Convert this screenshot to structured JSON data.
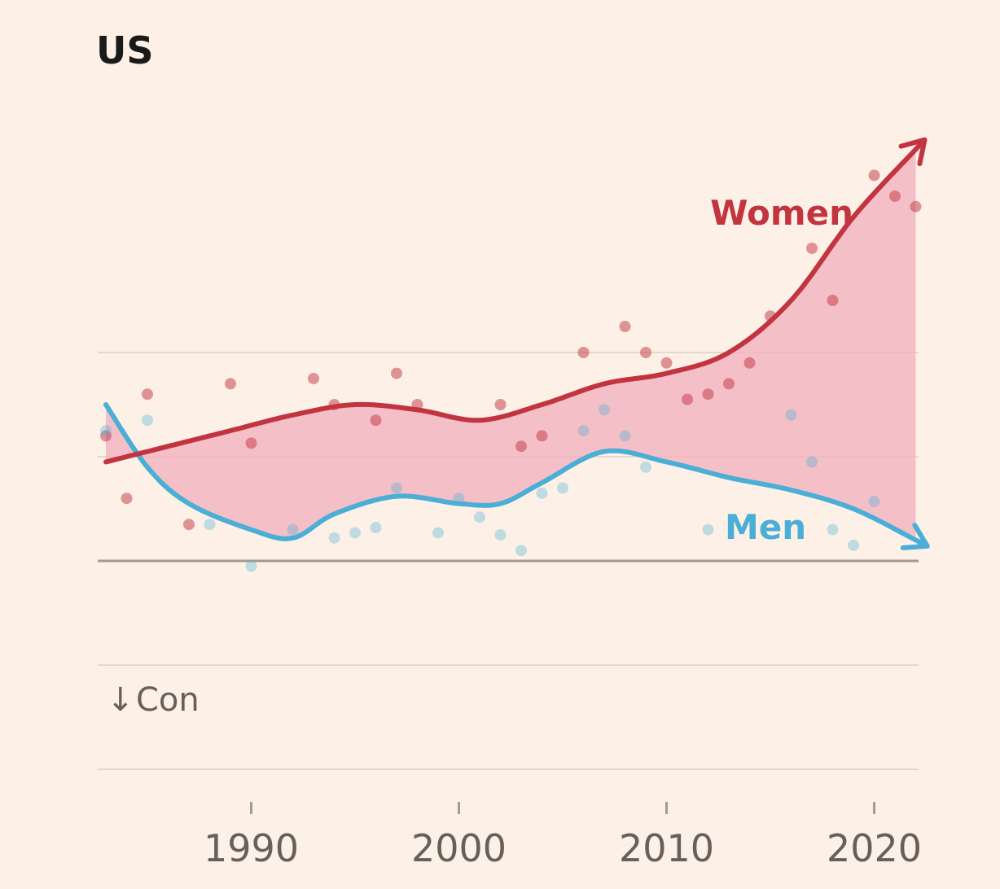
{
  "chart_data": {
    "type": "line",
    "title": "US",
    "xlabel": "",
    "ylabel": "",
    "xlim": [
      1983,
      2022
    ],
    "ylim": [
      -2,
      2
    ],
    "x_ticks": [
      1990,
      2000,
      2010,
      2020
    ],
    "y_gridlines": [
      -2,
      -1,
      0,
      1,
      2
    ],
    "baseline": 0,
    "grid": true,
    "annotations": {
      "bottom_arrow": "↓",
      "bottom_text": "Con"
    },
    "colors": {
      "background": "#fdf1e7",
      "women": "#c2343f",
      "men": "#4aaed6",
      "fill_between": "#f3b3c1",
      "grid": "#e3d8cf",
      "baseline": "#a89890"
    },
    "series": [
      {
        "name": "Women",
        "smooth_x": [
          1983,
          1986,
          1989,
          1992,
          1995,
          1998,
          2001,
          2004,
          2007,
          2010,
          2013,
          2016,
          2019,
          2022
        ],
        "smooth_y": [
          0.95,
          1.1,
          1.25,
          1.4,
          1.5,
          1.45,
          1.35,
          1.5,
          1.7,
          1.8,
          2.0,
          2.5,
          3.3,
          3.95
        ],
        "points_x": [
          1983,
          1984,
          1985,
          1987,
          1989,
          1990,
          1993,
          1994,
          1996,
          1997,
          1998,
          2002,
          2003,
          2004,
          2006,
          2008,
          2009,
          2010,
          2011,
          2012,
          2013,
          2014,
          2015,
          2017,
          2018,
          2020,
          2021,
          2022
        ],
        "points_y": [
          1.2,
          0.6,
          1.6,
          0.35,
          1.7,
          1.13,
          1.75,
          1.5,
          1.35,
          1.8,
          1.5,
          1.5,
          1.1,
          1.2,
          2.0,
          2.25,
          2.0,
          1.9,
          1.55,
          1.6,
          1.7,
          1.9,
          2.35,
          3.0,
          2.5,
          3.7,
          3.5,
          3.4
        ]
      },
      {
        "name": "Men",
        "smooth_x": [
          1983,
          1985,
          1987,
          1990,
          1992,
          1994,
          1997,
          2000,
          2002,
          2004,
          2007,
          2010,
          2013,
          2016,
          2019,
          2022
        ],
        "smooth_y": [
          1.5,
          0.9,
          0.55,
          0.3,
          0.22,
          0.45,
          0.62,
          0.55,
          0.55,
          0.75,
          1.05,
          0.95,
          0.8,
          0.68,
          0.5,
          0.2
        ],
        "points_x": [
          1983,
          1985,
          1988,
          1990,
          1992,
          1994,
          1995,
          1996,
          1997,
          1999,
          2000,
          2001,
          2002,
          2003,
          2004,
          2005,
          2006,
          2007,
          2008,
          2009,
          2012,
          2016,
          2017,
          2018,
          2019,
          2020
        ],
        "points_y": [
          1.25,
          1.35,
          0.35,
          -0.05,
          0.3,
          0.22,
          0.27,
          0.32,
          0.7,
          0.27,
          0.6,
          0.42,
          0.25,
          0.1,
          0.65,
          0.7,
          1.25,
          1.45,
          1.2,
          0.9,
          0.3,
          1.4,
          0.95,
          0.3,
          0.15,
          0.57
        ]
      }
    ]
  }
}
